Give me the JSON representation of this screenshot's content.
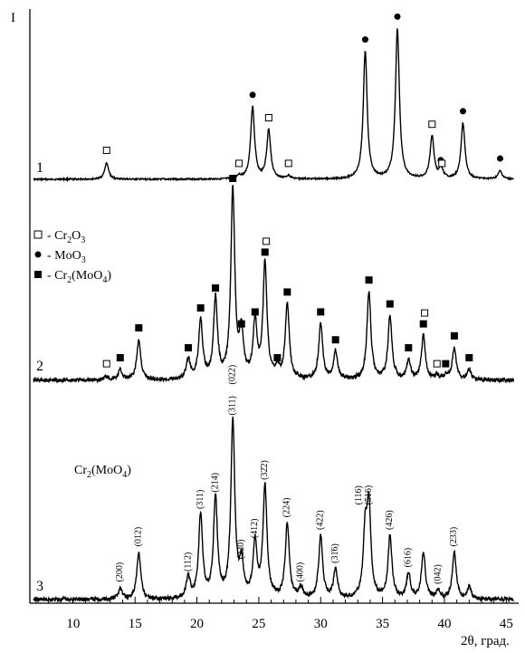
{
  "chart_data": {
    "type": "line",
    "xlabel": "2θ, град.",
    "ylabel": "I",
    "xlim": [
      6.5,
      46
    ],
    "xticks": [
      10,
      15,
      20,
      25,
      30,
      35,
      40,
      45
    ],
    "grid": false,
    "legend": {
      "placement": "middle-left",
      "entries": [
        {
          "marker": "open-square",
          "label": "Cr2O3"
        },
        {
          "marker": "dot",
          "label": "MoO3"
        },
        {
          "marker": "filled-square",
          "label": "Cr2(MoO4)"
        }
      ]
    },
    "series": [
      {
        "name": "1",
        "peaks": [
          {
            "x": 12.7,
            "h": 0.1,
            "m": "o"
          },
          {
            "x": 23.4,
            "h": 0.02,
            "m": "o"
          },
          {
            "x": 24.5,
            "h": 0.44,
            "m": "d"
          },
          {
            "x": 25.8,
            "h": 0.3,
            "m": "o"
          },
          {
            "x": 27.4,
            "h": 0.02,
            "m": "o"
          },
          {
            "x": 33.6,
            "h": 0.78,
            "m": "d"
          },
          {
            "x": 36.2,
            "h": 0.92,
            "m": "d"
          },
          {
            "x": 39.0,
            "h": 0.26,
            "m": "o"
          },
          {
            "x": 39.7,
            "h": 0.04,
            "m": "d"
          },
          {
            "x": 39.8,
            "h": 0.02,
            "m": "o"
          },
          {
            "x": 41.5,
            "h": 0.34,
            "m": "d"
          },
          {
            "x": 44.5,
            "h": 0.05,
            "m": "d"
          }
        ]
      },
      {
        "name": "2",
        "peaks": [
          {
            "x": 12.7,
            "h": 0.02,
            "m": "o"
          },
          {
            "x": 13.8,
            "h": 0.05,
            "m": "f"
          },
          {
            "x": 15.3,
            "h": 0.2,
            "m": "f"
          },
          {
            "x": 19.3,
            "h": 0.1,
            "m": "f"
          },
          {
            "x": 20.3,
            "h": 0.3,
            "m": "f"
          },
          {
            "x": 21.5,
            "h": 0.4,
            "m": "f"
          },
          {
            "x": 22.9,
            "h": 0.95,
            "m": "f"
          },
          {
            "x": 23.6,
            "h": 0.22,
            "m": "f"
          },
          {
            "x": 24.7,
            "h": 0.28,
            "m": "f"
          },
          {
            "x": 25.5,
            "h": 0.58,
            "m": "f"
          },
          {
            "x": 26.5,
            "h": 0.05,
            "m": "f"
          },
          {
            "x": 27.3,
            "h": 0.38,
            "m": "f"
          },
          {
            "x": 30.0,
            "h": 0.28,
            "m": "f"
          },
          {
            "x": 31.2,
            "h": 0.14,
            "m": "f"
          },
          {
            "x": 33.9,
            "h": 0.44,
            "m": "f"
          },
          {
            "x": 35.6,
            "h": 0.32,
            "m": "f"
          },
          {
            "x": 37.1,
            "h": 0.1,
            "m": "f"
          },
          {
            "x": 38.3,
            "h": 0.22,
            "m": "f"
          },
          {
            "x": 39.4,
            "h": 0.02,
            "m": "o"
          },
          {
            "x": 40.1,
            "h": 0.02,
            "m": "f"
          },
          {
            "x": 40.8,
            "h": 0.16,
            "m": "f"
          },
          {
            "x": 42.0,
            "h": 0.05,
            "m": "f"
          }
        ],
        "extra_markers": [
          {
            "x": 25.6,
            "h": 0.58,
            "m": "o"
          },
          {
            "x": 38.4,
            "h": 0.22,
            "m": "o"
          }
        ]
      },
      {
        "name": "3",
        "phase_label": "Cr2(MoO4)",
        "peaks": [
          {
            "x": 13.8,
            "h": 0.05,
            "l": "(200)"
          },
          {
            "x": 15.3,
            "h": 0.22,
            "l": "(012)"
          },
          {
            "x": 19.3,
            "h": 0.1,
            "l": "(112)"
          },
          {
            "x": 20.3,
            "h": 0.4,
            "l": "(311)"
          },
          {
            "x": 21.5,
            "h": 0.48,
            "l": "(214)"
          },
          {
            "x": 22.9,
            "h": 0.85,
            "l": "(311)"
          },
          {
            "x": 22.9,
            "h": 0.0,
            "l": "(022)"
          },
          {
            "x": 23.6,
            "h": 0.16,
            "l": "(220)"
          },
          {
            "x": 24.7,
            "h": 0.26,
            "l": "(412)"
          },
          {
            "x": 25.5,
            "h": 0.54,
            "l": "(32̄2)"
          },
          {
            "x": 27.3,
            "h": 0.36,
            "l": "(224)"
          },
          {
            "x": 28.4,
            "h": 0.05,
            "l": "(400)"
          },
          {
            "x": 30.0,
            "h": 0.3,
            "l": "(422)"
          },
          {
            "x": 31.2,
            "h": 0.14,
            "l": "(31̄6)"
          },
          {
            "x": 33.6,
            "h": 0.3,
            "l": "(116)"
          },
          {
            "x": 33.9,
            "h": 0.42,
            "l": "(516)"
          },
          {
            "x": 35.6,
            "h": 0.3,
            "l": "(426)"
          },
          {
            "x": 37.1,
            "h": 0.12,
            "l": "(616)"
          },
          {
            "x": 38.3,
            "h": 0.22,
            "l": ""
          },
          {
            "x": 39.5,
            "h": 0.04,
            "l": "(042)"
          },
          {
            "x": 40.8,
            "h": 0.22,
            "l": "(233)"
          },
          {
            "x": 42.0,
            "h": 0.06,
            "l": ""
          }
        ]
      }
    ]
  }
}
